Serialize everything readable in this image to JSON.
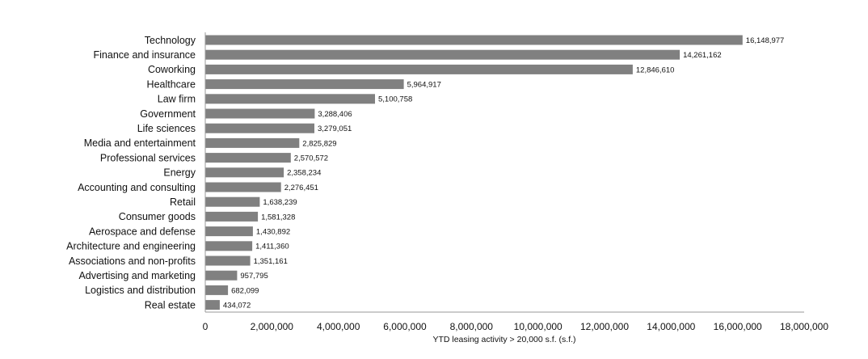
{
  "chart_data": {
    "type": "bar",
    "orientation": "horizontal",
    "title": "",
    "xlabel": "YTD leasing activity > 20,000 s.f. (s.f.)",
    "ylabel": "",
    "xlim": [
      0,
      18000000
    ],
    "x_ticks": [
      0,
      2000000,
      4000000,
      6000000,
      8000000,
      10000000,
      12000000,
      14000000,
      16000000,
      18000000
    ],
    "x_tick_labels": [
      "0",
      "2,000,000",
      "4,000,000",
      "6,000,000",
      "8,000,000",
      "10,000,000",
      "12,000,000",
      "14,000,000",
      "16,000,000",
      "18,000,000"
    ],
    "grid": false,
    "bar_color": "#808080",
    "categories": [
      "Technology",
      "Finance and insurance",
      "Coworking",
      "Healthcare",
      "Law firm",
      "Government",
      "Life sciences",
      "Media and entertainment",
      "Professional services",
      "Energy",
      "Accounting and consulting",
      "Retail",
      "Consumer goods",
      "Aerospace and defense",
      "Architecture and engineering",
      "Associations and non-profits",
      "Advertising and marketing",
      "Logistics and distribution",
      "Real estate"
    ],
    "values": [
      16148977,
      14261162,
      12846610,
      5964917,
      5100758,
      3288406,
      3279051,
      2825829,
      2570572,
      2358234,
      2276451,
      1638239,
      1581328,
      1430892,
      1411360,
      1351161,
      957795,
      682099,
      434072
    ],
    "value_labels": [
      "16,148,977",
      "14,261,162",
      "12,846,610",
      "5,964,917",
      "5,100,758",
      "3,288,406",
      "3,279,051",
      "2,825,829",
      "2,570,572",
      "2,358,234",
      "2,276,451",
      "1,638,239",
      "1,581,328",
      "1,430,892",
      "1,411,360",
      "1,351,161",
      "957,795",
      "682,099",
      "434,072"
    ]
  }
}
